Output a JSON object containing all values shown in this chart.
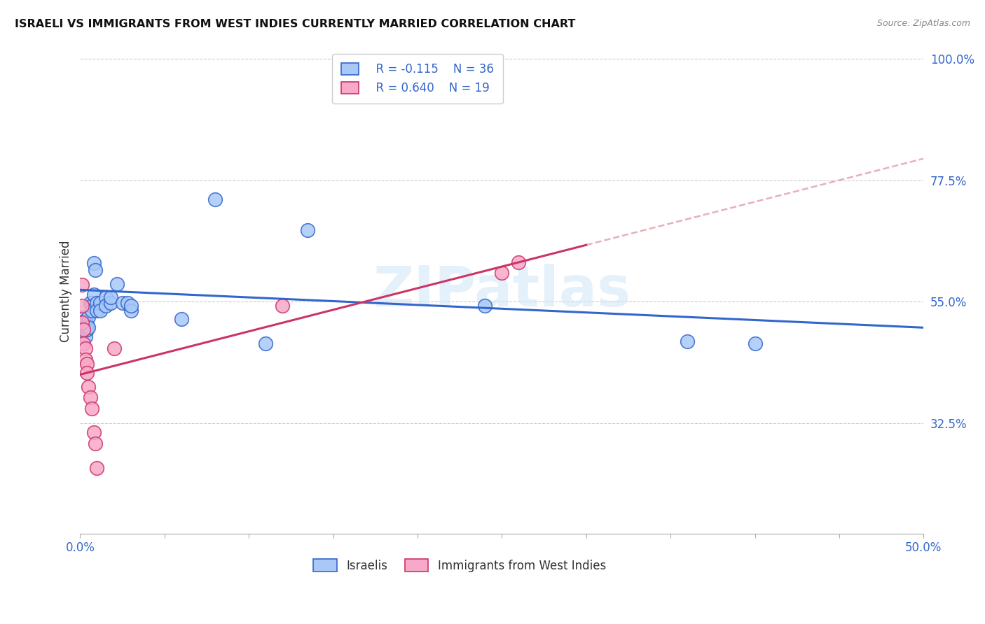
{
  "title": "ISRAELI VS IMMIGRANTS FROM WEST INDIES CURRENTLY MARRIED CORRELATION CHART",
  "source": "Source: ZipAtlas.com",
  "ylabel": "Currently Married",
  "xmin": 0.0,
  "xmax": 0.5,
  "ymin": 0.12,
  "ymax": 1.02,
  "yticks": [
    0.325,
    0.55,
    0.775,
    1.0
  ],
  "ytick_labels": [
    "32.5%",
    "55.0%",
    "77.5%",
    "100.0%"
  ],
  "xticks": [
    0.0,
    0.05,
    0.1,
    0.15,
    0.2,
    0.25,
    0.3,
    0.35,
    0.4,
    0.45,
    0.5
  ],
  "xtick_labels": [
    "0.0%",
    "",
    "",
    "",
    "",
    "",
    "",
    "",
    "",
    "",
    "50.0%"
  ],
  "grid_color": "#cccccc",
  "background_color": "#ffffff",
  "israeli_color": "#a8c8f8",
  "west_indies_color": "#f8a8c8",
  "israeli_line_color": "#3366cc",
  "west_indies_line_color": "#cc3366",
  "west_indies_dashed_color": "#e8b0b8",
  "legend_r_israeli": "R = -0.115",
  "legend_n_israeli": "N = 36",
  "legend_r_west_indies": "R = 0.640",
  "legend_n_west_indies": "N = 19",
  "watermark": "ZIPatlas",
  "israeli_line": {
    "x0": 0.0,
    "y0": 0.572,
    "x1": 0.5,
    "y1": 0.502
  },
  "west_indies_line_solid": {
    "x0": 0.0,
    "y0": 0.415,
    "x1": 0.3,
    "y1": 0.655
  },
  "west_indies_line_dashed": {
    "x0": 0.3,
    "y0": 0.655,
    "x1": 0.5,
    "y1": 0.815
  },
  "israeli_points": [
    [
      0.001,
      0.52
    ],
    [
      0.001,
      0.505
    ],
    [
      0.002,
      0.495
    ],
    [
      0.002,
      0.51
    ],
    [
      0.003,
      0.485
    ],
    [
      0.003,
      0.515
    ],
    [
      0.004,
      0.508
    ],
    [
      0.004,
      0.498
    ],
    [
      0.005,
      0.522
    ],
    [
      0.005,
      0.502
    ],
    [
      0.006,
      0.548
    ],
    [
      0.007,
      0.543
    ],
    [
      0.007,
      0.533
    ],
    [
      0.008,
      0.563
    ],
    [
      0.008,
      0.622
    ],
    [
      0.009,
      0.608
    ],
    [
      0.01,
      0.548
    ],
    [
      0.01,
      0.533
    ],
    [
      0.012,
      0.548
    ],
    [
      0.012,
      0.533
    ],
    [
      0.015,
      0.558
    ],
    [
      0.015,
      0.543
    ],
    [
      0.018,
      0.548
    ],
    [
      0.018,
      0.558
    ],
    [
      0.022,
      0.583
    ],
    [
      0.025,
      0.548
    ],
    [
      0.028,
      0.548
    ],
    [
      0.03,
      0.533
    ],
    [
      0.03,
      0.543
    ],
    [
      0.06,
      0.518
    ],
    [
      0.08,
      0.74
    ],
    [
      0.11,
      0.473
    ],
    [
      0.135,
      0.683
    ],
    [
      0.24,
      0.543
    ],
    [
      0.36,
      0.477
    ],
    [
      0.4,
      0.473
    ]
  ],
  "west_indies_points": [
    [
      0.001,
      0.582
    ],
    [
      0.001,
      0.542
    ],
    [
      0.001,
      0.512
    ],
    [
      0.002,
      0.498
    ],
    [
      0.002,
      0.473
    ],
    [
      0.003,
      0.463
    ],
    [
      0.003,
      0.443
    ],
    [
      0.004,
      0.435
    ],
    [
      0.004,
      0.418
    ],
    [
      0.005,
      0.392
    ],
    [
      0.006,
      0.373
    ],
    [
      0.007,
      0.352
    ],
    [
      0.008,
      0.308
    ],
    [
      0.009,
      0.287
    ],
    [
      0.01,
      0.242
    ],
    [
      0.02,
      0.463
    ],
    [
      0.12,
      0.543
    ],
    [
      0.25,
      0.603
    ],
    [
      0.26,
      0.623
    ]
  ]
}
